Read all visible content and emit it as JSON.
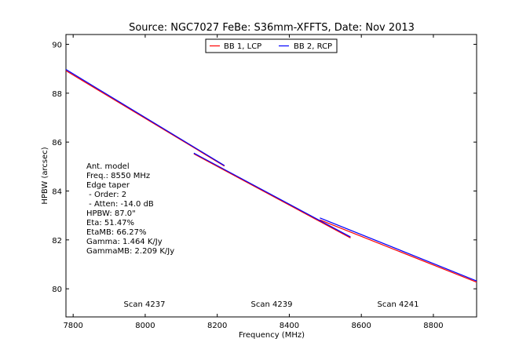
{
  "chart_data": {
    "type": "line",
    "title": "Source: NGC7027 FeBe: S36mm-XFFTS, Date: Nov 2013",
    "xlabel": "Frequency (MHz)",
    "ylabel": "HPBW (arcsec)",
    "xlim": [
      7780,
      8920
    ],
    "ylim": [
      78.85,
      90.4
    ],
    "xticks": [
      7800,
      8000,
      8200,
      8400,
      8600,
      8800
    ],
    "yticks": [
      80,
      82,
      84,
      86,
      88,
      90
    ],
    "xtick_labels": [
      "7800",
      "8000",
      "8200",
      "8400",
      "8600",
      "8800"
    ],
    "ytick_labels": [
      "80",
      "82",
      "84",
      "86",
      "88",
      "90"
    ],
    "legend": {
      "position": "top-center",
      "entries": [
        "BB 1, LCP",
        "BB 2, RCP"
      ]
    },
    "series": [
      {
        "name": "BB 1, LCP",
        "color": "#ff0000",
        "segments": [
          {
            "x": [
              7780,
              8220
            ],
            "y": [
              88.92,
              85.02
            ]
          },
          {
            "x": [
              8135,
              8570
            ],
            "y": [
              85.52,
              82.08
            ]
          },
          {
            "x": [
              8485,
              8920
            ],
            "y": [
              82.82,
              80.27
            ]
          }
        ]
      },
      {
        "name": "BB 2, RCP",
        "color": "#0000ff",
        "segments": [
          {
            "x": [
              7780,
              8220
            ],
            "y": [
              88.97,
              85.04
            ]
          },
          {
            "x": [
              8135,
              8570
            ],
            "y": [
              85.55,
              82.12
            ]
          },
          {
            "x": [
              8485,
              8920
            ],
            "y": [
              82.9,
              80.32
            ]
          }
        ]
      }
    ],
    "annotations": {
      "model_lines": [
        "Ant. model",
        "Freq.: 8550 MHz",
        "Edge taper",
        " - Order: 2",
        " - Atten: -14.0 dB",
        "HPBW: 87.0\"",
        "Eta: 51.47%",
        "EtaMB: 66.27%",
        "Gamma: 1.464 K/Jy",
        "GammaMB: 2.209 K/Jy"
      ],
      "scans": [
        {
          "label": "Scan 4237",
          "x": 8000
        },
        {
          "label": "Scan 4239",
          "x": 8350
        },
        {
          "label": "Scan 4241",
          "x": 8700
        }
      ]
    }
  }
}
